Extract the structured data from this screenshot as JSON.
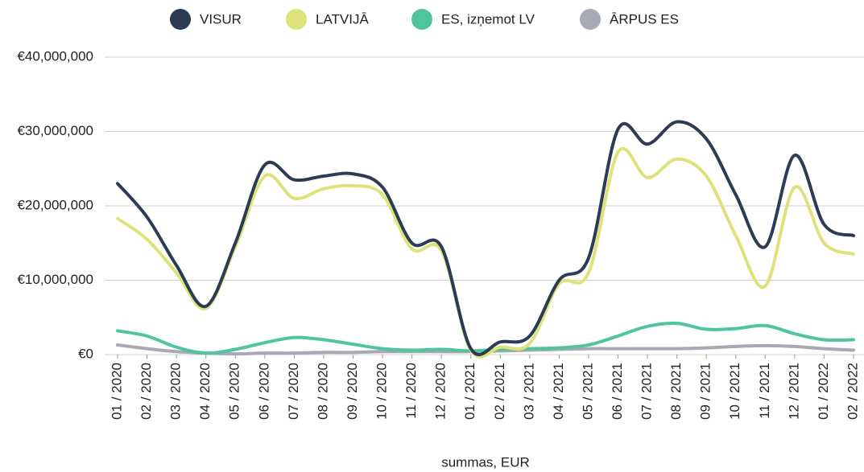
{
  "chart_data": {
    "type": "line",
    "x_label": "summas, EUR",
    "categories": [
      "01 / 2020",
      "02 / 2020",
      "03 / 2020",
      "04 / 2020",
      "05 / 2020",
      "06 / 2020",
      "07 / 2020",
      "08 / 2020",
      "09 / 2020",
      "10 / 2020",
      "11 / 2020",
      "12 / 2020",
      "01 / 2021",
      "02 / 2021",
      "03 / 2021",
      "04 / 2021",
      "05 / 2021",
      "06 / 2021",
      "07 / 2021",
      "08 / 2021",
      "09 / 2021",
      "10 / 2021",
      "11 / 2021",
      "12 / 2021",
      "01 / 2022",
      "02 / 2022"
    ],
    "series": [
      {
        "name": "VISUR",
        "color": "#2d3b55",
        "values": [
          23000000,
          18500000,
          12000000,
          6500000,
          15000000,
          25500000,
          23500000,
          24000000,
          24300000,
          22500000,
          15000000,
          14500000,
          800000,
          1700000,
          2500000,
          10000000,
          13000000,
          30300000,
          28300000,
          31300000,
          29000000,
          21500000,
          14500000,
          26800000,
          17500000,
          16000000
        ]
      },
      {
        "name": "LATVIJĀ",
        "color": "#dde37a",
        "values": [
          18300000,
          15500000,
          11000000,
          6200000,
          14500000,
          24000000,
          21000000,
          22300000,
          22700000,
          21500000,
          14200000,
          14000000,
          600000,
          1000000,
          1500000,
          9500000,
          11000000,
          27200000,
          23800000,
          26300000,
          24000000,
          16000000,
          9200000,
          22500000,
          15000000,
          13500000
        ]
      },
      {
        "name": "ES, izņemot LV",
        "color": "#4fc49e",
        "values": [
          3200000,
          2500000,
          1000000,
          200000,
          700000,
          1600000,
          2300000,
          2000000,
          1400000,
          800000,
          600000,
          700000,
          500000,
          700000,
          800000,
          900000,
          1300000,
          2500000,
          3800000,
          4200000,
          3400000,
          3500000,
          3900000,
          2800000,
          2000000,
          2000000
        ]
      },
      {
        "name": "ĀRPUS ES",
        "color": "#a7a9b4",
        "values": [
          1300000,
          800000,
          400000,
          200000,
          100000,
          200000,
          200000,
          300000,
          300000,
          400000,
          400000,
          400000,
          400000,
          500000,
          600000,
          700000,
          800000,
          800000,
          800000,
          800000,
          900000,
          1100000,
          1200000,
          1100000,
          800000,
          600000
        ]
      }
    ],
    "ylim": [
      0,
      40000000
    ],
    "yticks": [
      {
        "value": 0,
        "label": "€0"
      },
      {
        "value": 10000000,
        "label": "€10,000,000"
      },
      {
        "value": 20000000,
        "label": "€20,000,000"
      },
      {
        "value": 30000000,
        "label": "€30,000,000"
      },
      {
        "value": 40000000,
        "label": "€40,000,000"
      }
    ],
    "grid": true,
    "legend": "top"
  }
}
